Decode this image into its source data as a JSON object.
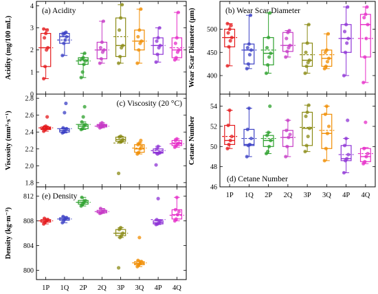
{
  "colors": [
    "#e41a1c",
    "#3a3fc4",
    "#2ca02c",
    "#c63ac6",
    "#8a8a14",
    "#f08c00",
    "#8e33d6",
    "#e62ec8"
  ],
  "chart_data": [
    {
      "type": "box",
      "title": "(a) Acidity",
      "ylabel": "Acidity (mg/100 mL)",
      "ylim": [
        0,
        4.2
      ],
      "yticks": [
        0,
        1,
        2,
        3,
        4
      ],
      "categories": [
        "1P",
        "1Q",
        "2P",
        "2Q",
        "3P",
        "3Q",
        "4P",
        "4Q"
      ],
      "boxes": [
        {
          "q1": 1.25,
          "median": 2.1,
          "q3": 2.75,
          "whislo": 0.7,
          "whishi": 2.95,
          "mean": 2.1,
          "points": [
            0.7,
            1.25,
            2.0,
            2.1,
            2.55,
            2.75,
            2.9,
            2.95
          ]
        },
        {
          "q1": 2.3,
          "median": 2.6,
          "q3": 2.75,
          "whislo": 1.75,
          "whishi": 2.8,
          "mean": 2.45,
          "points": [
            1.75,
            2.3,
            2.45,
            2.6,
            2.7,
            2.75,
            2.8
          ]
        },
        {
          "q1": 1.35,
          "median": 1.55,
          "q3": 1.65,
          "whislo": 0.75,
          "whishi": 1.85,
          "mean": 1.5,
          "points": [
            0.75,
            1.0,
            1.35,
            1.5,
            1.6,
            1.65,
            1.85
          ]
        },
        {
          "q1": 1.6,
          "median": 2.0,
          "q3": 2.35,
          "whislo": 1.4,
          "whishi": 3.3,
          "mean": 2.0,
          "points": [
            1.4,
            1.6,
            1.9,
            2.0,
            2.1,
            2.35,
            3.3
          ]
        },
        {
          "q1": 1.7,
          "median": 2.2,
          "q3": 3.45,
          "whislo": 1.4,
          "whishi": 4.05,
          "mean": 2.6,
          "points": [
            1.4,
            1.7,
            2.1,
            2.2,
            2.9,
            3.45,
            4.05
          ]
        },
        {
          "q1": 2.0,
          "median": 2.4,
          "q3": 2.9,
          "whislo": 1.4,
          "whishi": 3.85,
          "mean": 2.4,
          "points": [
            1.4,
            2.0,
            2.3,
            2.4,
            2.6,
            2.9,
            3.85
          ]
        },
        {
          "q1": 1.8,
          "median": 2.2,
          "q3": 2.55,
          "whislo": 1.45,
          "whishi": 3.0,
          "mean": 2.2,
          "points": [
            1.45,
            1.8,
            2.1,
            2.2,
            2.4,
            2.55,
            3.0
          ]
        },
        {
          "q1": 1.65,
          "median": 2.0,
          "q3": 2.55,
          "whislo": 1.55,
          "whishi": 3.7,
          "mean": 2.1,
          "points": [
            1.55,
            1.65,
            1.9,
            2.0,
            2.3,
            2.55,
            3.7
          ]
        }
      ]
    },
    {
      "type": "box",
      "title": "(b) Wear Scar Diameter",
      "ylabel": "Wear Scar Diameter (μm)",
      "ylim": [
        360,
        560
      ],
      "yticks": [
        400,
        450,
        500
      ],
      "categories": [
        "1P",
        "1Q",
        "2P",
        "2Q",
        "3P",
        "3Q",
        "4P",
        "4Q"
      ],
      "boxes": [
        {
          "q1": 462,
          "median": 482,
          "q3": 500,
          "whislo": 421,
          "whishi": 512,
          "mean": 482,
          "points": [
            421,
            462,
            475,
            482,
            492,
            500,
            508,
            512
          ]
        },
        {
          "q1": 425,
          "median": 455,
          "q3": 468,
          "whislo": 415,
          "whishi": 530,
          "mean": 455,
          "points": [
            415,
            425,
            445,
            455,
            460,
            468,
            530
          ]
        },
        {
          "q1": 423,
          "median": 448,
          "q3": 482,
          "whislo": 405,
          "whishi": 535,
          "mean": 455,
          "points": [
            405,
            423,
            440,
            448,
            460,
            482,
            535
          ]
        },
        {
          "q1": 452,
          "median": 465,
          "q3": 493,
          "whislo": 440,
          "whishi": 497,
          "mean": 465,
          "points": [
            440,
            452,
            460,
            465,
            480,
            493,
            497
          ]
        },
        {
          "q1": 420,
          "median": 433,
          "q3": 470,
          "whislo": 405,
          "whishi": 510,
          "mean": 445,
          "points": [
            405,
            420,
            428,
            433,
            450,
            470,
            510
          ]
        },
        {
          "q1": 420,
          "median": 437,
          "q3": 455,
          "whislo": 415,
          "whishi": 490,
          "mean": 445,
          "points": [
            415,
            420,
            430,
            437,
            450,
            455,
            490
          ]
        },
        {
          "q1": 450,
          "median": 480,
          "q3": 510,
          "whislo": 400,
          "whishi": 548,
          "mean": 480,
          "points": [
            400,
            450,
            470,
            480,
            495,
            510,
            548
          ]
        },
        {
          "q1": 440,
          "median": 510,
          "q3": 532,
          "whislo": 385,
          "whishi": 548,
          "mean": 480,
          "points": [
            385,
            440,
            480,
            510,
            525,
            532,
            548
          ]
        }
      ]
    },
    {
      "type": "box",
      "title": "(c) Viscosity (20 °C)",
      "ylabel": "Viscosity (mm²·s⁻¹)",
      "ylim": [
        1.75,
        2.85
      ],
      "yticks": [
        1.8,
        2.0,
        2.2,
        2.4,
        2.6,
        2.8
      ],
      "categories": [
        "1P",
        "1Q",
        "2P",
        "2Q",
        "3P",
        "3Q",
        "4P",
        "4Q"
      ],
      "boxes": [
        {
          "q1": 2.43,
          "median": 2.44,
          "q3": 2.46,
          "whislo": 2.41,
          "whishi": 2.47,
          "mean": 2.45,
          "points": [
            2.41,
            2.43,
            2.44,
            2.45,
            2.46,
            2.47,
            2.58
          ]
        },
        {
          "q1": 2.4,
          "median": 2.42,
          "q3": 2.44,
          "whislo": 2.39,
          "whishi": 2.45,
          "mean": 2.44,
          "points": [
            2.39,
            2.4,
            2.42,
            2.44,
            2.45,
            2.63,
            2.74
          ]
        },
        {
          "q1": 2.44,
          "median": 2.47,
          "q3": 2.49,
          "whislo": 2.43,
          "whishi": 2.52,
          "mean": 2.49,
          "points": [
            2.43,
            2.44,
            2.47,
            2.49,
            2.52,
            2.58,
            2.7
          ]
        },
        {
          "q1": 2.46,
          "median": 2.48,
          "q3": 2.49,
          "whislo": 2.45,
          "whishi": 2.51,
          "mean": 2.47,
          "points": [
            2.45,
            2.46,
            2.47,
            2.48,
            2.49,
            2.51
          ]
        },
        {
          "q1": 2.29,
          "median": 2.31,
          "q3": 2.34,
          "whislo": 2.28,
          "whishi": 2.35,
          "mean": 2.27,
          "points": [
            1.91,
            2.28,
            2.29,
            2.31,
            2.34,
            2.35
          ]
        },
        {
          "q1": 2.16,
          "median": 2.2,
          "q3": 2.25,
          "whislo": 2.14,
          "whishi": 2.27,
          "mean": 2.21,
          "points": [
            2.14,
            2.16,
            2.2,
            2.23,
            2.25,
            2.27,
            2.3
          ]
        },
        {
          "q1": 2.15,
          "median": 2.16,
          "q3": 2.2,
          "whislo": 2.14,
          "whishi": 2.23,
          "mean": 2.18,
          "points": [
            2.01,
            2.14,
            2.15,
            2.16,
            2.2,
            2.23
          ]
        },
        {
          "q1": 2.24,
          "median": 2.27,
          "q3": 2.3,
          "whislo": 2.22,
          "whishi": 2.32,
          "mean": 2.26,
          "points": [
            2.22,
            2.24,
            2.26,
            2.27,
            2.3,
            2.32
          ]
        }
      ]
    },
    {
      "type": "box",
      "title": "(d) Cetane Number",
      "ylabel": "Cetane Number",
      "ylim": [
        46,
        55.2
      ],
      "yticks": [
        46,
        48,
        50,
        52,
        54
      ],
      "categories": [
        "1P",
        "1Q",
        "2P",
        "2Q",
        "3P",
        "3Q",
        "4P",
        "4Q"
      ],
      "boxes": [
        {
          "q1": 50.2,
          "median": 50.6,
          "q3": 52.1,
          "whislo": 49.8,
          "whishi": 53.6,
          "mean": 51.0,
          "points": [
            49.8,
            50.2,
            50.6,
            51.0,
            52.1,
            53.6
          ]
        },
        {
          "q1": 50.1,
          "median": 50.2,
          "q3": 51.7,
          "whislo": 49.0,
          "whishi": 53.8,
          "mean": 50.8,
          "points": [
            49.0,
            50.1,
            50.2,
            50.8,
            51.7,
            53.8
          ]
        },
        {
          "q1": 50.0,
          "median": 50.6,
          "q3": 51.1,
          "whislo": 49.3,
          "whishi": 51.4,
          "mean": 50.8,
          "points": [
            49.3,
            49.5,
            50.0,
            50.6,
            51.1,
            51.4,
            54.0
          ]
        },
        {
          "q1": 50.0,
          "median": 50.9,
          "q3": 51.6,
          "whislo": 49.0,
          "whishi": 52.6,
          "mean": 50.9,
          "points": [
            49.0,
            50.0,
            50.9,
            51.2,
            51.6,
            52.6
          ]
        },
        {
          "q1": 50.1,
          "median": 51.8,
          "q3": 53.4,
          "whislo": 49.5,
          "whishi": 54.1,
          "mean": 51.9,
          "points": [
            49.5,
            50.1,
            51.0,
            51.8,
            53.0,
            53.4,
            54.1
          ]
        },
        {
          "q1": 49.8,
          "median": 51.3,
          "q3": 53.2,
          "whislo": 48.6,
          "whishi": 54.0,
          "mean": 51.6,
          "points": [
            48.6,
            49.8,
            51.3,
            52.0,
            53.2,
            54.0
          ]
        },
        {
          "q1": 48.6,
          "median": 48.8,
          "q3": 50.1,
          "whislo": 47.4,
          "whishi": 50.8,
          "mean": 49.2,
          "points": [
            47.4,
            48.6,
            48.8,
            49.2,
            50.1,
            50.8,
            52.6
          ]
        },
        {
          "q1": 48.5,
          "median": 49.0,
          "q3": 49.8,
          "whislo": 48.3,
          "whishi": 49.9,
          "mean": 49.3,
          "points": [
            48.3,
            48.5,
            49.0,
            49.3,
            49.8,
            52.4
          ]
        }
      ]
    },
    {
      "type": "box",
      "title": "(e) Density",
      "ylabel": "Density (kg·m⁻³)",
      "ylim": [
        798.5,
        813.5
      ],
      "yticks": [
        800,
        804,
        808,
        812
      ],
      "categories": [
        "1P",
        "1Q",
        "2P",
        "2Q",
        "3P",
        "3Q",
        "4P",
        "4Q"
      ],
      "boxes": [
        {
          "q1": 807.8,
          "median": 808.0,
          "q3": 808.2,
          "whislo": 807.5,
          "whishi": 808.4,
          "mean": 808.0,
          "points": [
            807.5,
            807.8,
            808.0,
            808.2,
            808.4
          ]
        },
        {
          "q1": 808.1,
          "median": 808.3,
          "q3": 808.5,
          "whislo": 807.7,
          "whishi": 808.7,
          "mean": 808.3,
          "points": [
            807.7,
            808.1,
            808.3,
            808.5,
            808.7
          ]
        },
        {
          "q1": 810.7,
          "median": 811.0,
          "q3": 811.3,
          "whislo": 810.4,
          "whishi": 811.8,
          "mean": 811.0,
          "points": [
            810.4,
            810.7,
            811.0,
            811.3,
            811.8
          ]
        },
        {
          "q1": 809.3,
          "median": 809.5,
          "q3": 809.7,
          "whislo": 809.2,
          "whishi": 810.0,
          "mean": 809.5,
          "points": [
            809.2,
            809.3,
            809.5,
            809.7,
            810.0
          ]
        },
        {
          "q1": 805.6,
          "median": 806.0,
          "q3": 806.6,
          "whislo": 805.3,
          "whishi": 806.9,
          "mean": 806.0,
          "points": [
            800.4,
            805.3,
            805.6,
            806.0,
            806.6,
            806.9
          ]
        },
        {
          "q1": 800.9,
          "median": 801.1,
          "q3": 801.4,
          "whislo": 800.6,
          "whishi": 801.6,
          "mean": 801.2,
          "points": [
            800.6,
            800.9,
            801.1,
            801.4,
            801.6,
            805.3
          ]
        },
        {
          "q1": 807.5,
          "median": 807.7,
          "q3": 808.0,
          "whislo": 807.4,
          "whishi": 808.2,
          "mean": 808.2,
          "points": [
            807.4,
            807.5,
            807.7,
            808.0,
            808.2,
            811.6
          ]
        },
        {
          "q1": 808.3,
          "median": 809.0,
          "q3": 809.8,
          "whislo": 808.0,
          "whishi": 811.8,
          "mean": 808.9,
          "points": [
            808.0,
            808.3,
            809.0,
            809.5,
            809.8,
            811.8
          ]
        }
      ]
    }
  ]
}
